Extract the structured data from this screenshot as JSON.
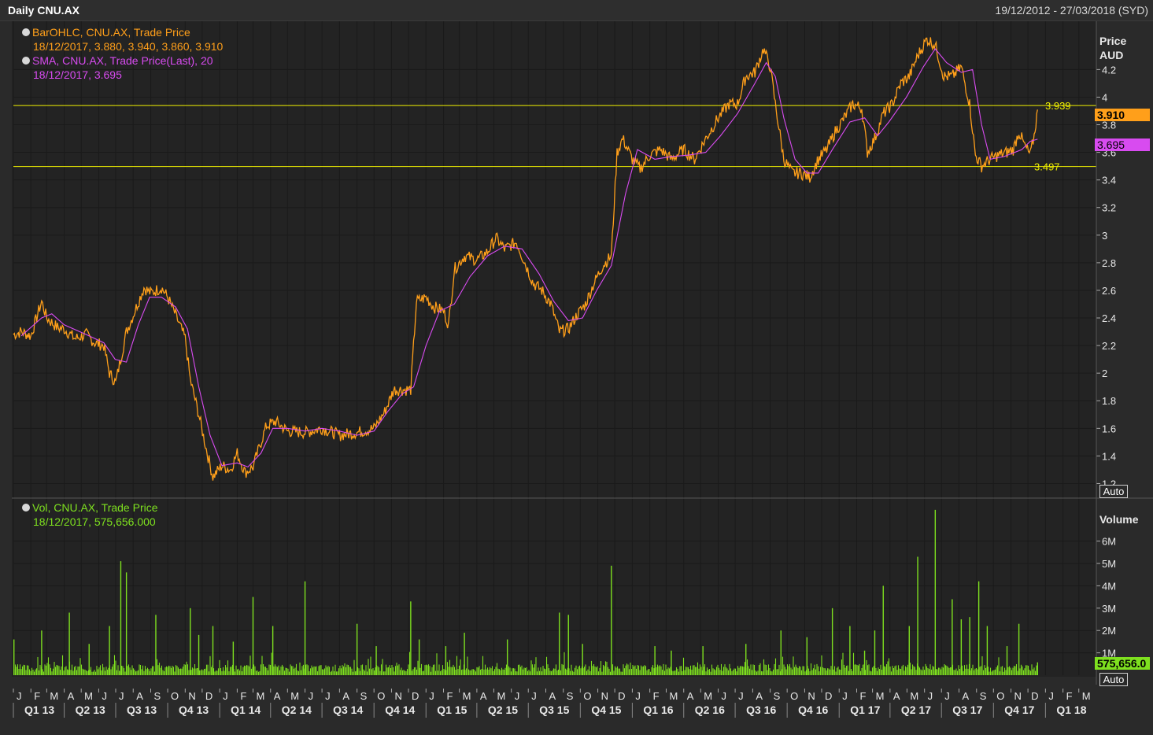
{
  "window": {
    "title": "Daily CNU.AX",
    "date_range": "19/12/2012 - 27/03/2018 (SYD)"
  },
  "legend": {
    "ohlc_name": "BarOHLC, CNU.AX, Trade Price",
    "ohlc_values": "18/12/2017, 3.880, 3.940, 3.860, 3.910",
    "sma_name": "SMA, CNU.AX, Trade Price(Last),  20",
    "sma_values": "18/12/2017, 3.695",
    "vol_name": "Vol, CNU.AX, Trade Price",
    "vol_values": "18/12/2017, 575,656.000"
  },
  "price_axis": {
    "title": "Price",
    "unit": "AUD",
    "ticks": [
      "4.2",
      "4",
      "3.8",
      "3.6",
      "3.4",
      "3.2",
      "3",
      "2.8",
      "2.6",
      "2.4",
      "2.2",
      "2",
      "1.8",
      "1.6",
      "1.4",
      "1.2"
    ],
    "last_price_tag": "3.910",
    "sma_tag": "3.695",
    "auto_label": "Auto"
  },
  "volume_axis": {
    "title": "Volume",
    "ticks": [
      "6M",
      "5M",
      "4M",
      "3M",
      "2M",
      "1M"
    ],
    "last_volume_tag": "575,656.0",
    "auto_label": "Auto"
  },
  "hlines": [
    {
      "value": 3.939,
      "label": "3.939"
    },
    {
      "value": 3.497,
      "label": "3.497"
    }
  ],
  "time_axis": {
    "months": [
      "J",
      "F",
      "M",
      "A",
      "M",
      "J",
      "J",
      "A",
      "S",
      "O",
      "N",
      "D",
      "J",
      "F",
      "M",
      "A",
      "M",
      "J",
      "J",
      "A",
      "S",
      "O",
      "N",
      "D",
      "J",
      "F",
      "M",
      "A",
      "M",
      "J",
      "J",
      "A",
      "S",
      "O",
      "N",
      "D",
      "J",
      "F",
      "M",
      "A",
      "M",
      "J",
      "J",
      "A",
      "S",
      "O",
      "N",
      "D",
      "J",
      "F",
      "M",
      "A",
      "M",
      "J",
      "J",
      "A",
      "S",
      "O",
      "N",
      "D",
      "J",
      "F",
      "M"
    ],
    "quarters": [
      "Q1 13",
      "Q2 13",
      "Q3 13",
      "Q4 13",
      "Q1 14",
      "Q2 14",
      "Q3 14",
      "Q4 14",
      "Q1 15",
      "Q2 15",
      "Q3 15",
      "Q4 15",
      "Q1 16",
      "Q2 16",
      "Q3 16",
      "Q4 16",
      "Q1 17",
      "Q2 17",
      "Q3 17",
      "Q4 17",
      "Q1 18"
    ]
  },
  "colors": {
    "price": "#ff9f1a",
    "sma": "#d84bf0",
    "volume": "#7ee01f",
    "hline": "#f0f000",
    "grid": "#000000",
    "background": "#232323"
  },
  "chart_data": [
    {
      "type": "line",
      "name": "BarOHLC, CNU.AX, Trade Price",
      "x_range": [
        "2013-01-01",
        "2018-03-31"
      ],
      "ylim": [
        1.1,
        4.55
      ],
      "points": [
        [
          "2013-01-01",
          2.28
        ],
        [
          "2013-01-15",
          2.3
        ],
        [
          "2013-02-01",
          2.27
        ],
        [
          "2013-02-20",
          2.52
        ],
        [
          "2013-03-01",
          2.4
        ],
        [
          "2013-03-20",
          2.33
        ],
        [
          "2013-04-01",
          2.32
        ],
        [
          "2013-04-20",
          2.25
        ],
        [
          "2013-05-10",
          2.28
        ],
        [
          "2013-05-25",
          2.22
        ],
        [
          "2013-06-10",
          2.2
        ],
        [
          "2013-06-20",
          2.0
        ],
        [
          "2013-07-01",
          1.93
        ],
        [
          "2013-07-20",
          2.3
        ],
        [
          "2013-08-01",
          2.42
        ],
        [
          "2013-08-20",
          2.62
        ],
        [
          "2013-09-01",
          2.58
        ],
        [
          "2013-09-20",
          2.62
        ],
        [
          "2013-10-01",
          2.55
        ],
        [
          "2013-10-15",
          2.42
        ],
        [
          "2013-11-01",
          2.25
        ],
        [
          "2013-11-10",
          1.95
        ],
        [
          "2013-11-25",
          1.7
        ],
        [
          "2013-12-10",
          1.42
        ],
        [
          "2013-12-20",
          1.25
        ],
        [
          "2014-01-05",
          1.33
        ],
        [
          "2014-01-20",
          1.3
        ],
        [
          "2014-02-01",
          1.42
        ],
        [
          "2014-02-15",
          1.28
        ],
        [
          "2014-03-01",
          1.32
        ],
        [
          "2014-03-15",
          1.5
        ],
        [
          "2014-03-25",
          1.62
        ],
        [
          "2014-04-10",
          1.65
        ],
        [
          "2014-05-01",
          1.58
        ],
        [
          "2014-06-01",
          1.57
        ],
        [
          "2014-07-01",
          1.6
        ],
        [
          "2014-08-01",
          1.55
        ],
        [
          "2014-09-01",
          1.57
        ],
        [
          "2014-10-01",
          1.6
        ],
        [
          "2014-10-20",
          1.72
        ],
        [
          "2014-11-05",
          1.88
        ],
        [
          "2014-11-20",
          1.88
        ],
        [
          "2014-12-05",
          1.88
        ],
        [
          "2014-12-15",
          2.52
        ],
        [
          "2015-01-01",
          2.55
        ],
        [
          "2015-01-15",
          2.48
        ],
        [
          "2015-02-01",
          2.45
        ],
        [
          "2015-02-10",
          2.35
        ],
        [
          "2015-02-20",
          2.75
        ],
        [
          "2015-03-10",
          2.85
        ],
        [
          "2015-04-01",
          2.82
        ],
        [
          "2015-04-20",
          2.88
        ],
        [
          "2015-05-05",
          2.98
        ],
        [
          "2015-05-20",
          2.9
        ],
        [
          "2015-06-10",
          2.95
        ],
        [
          "2015-06-25",
          2.8
        ],
        [
          "2015-07-10",
          2.65
        ],
        [
          "2015-07-25",
          2.6
        ],
        [
          "2015-08-10",
          2.5
        ],
        [
          "2015-08-25",
          2.3
        ],
        [
          "2015-09-10",
          2.32
        ],
        [
          "2015-09-25",
          2.42
        ],
        [
          "2015-10-10",
          2.5
        ],
        [
          "2015-10-25",
          2.65
        ],
        [
          "2015-11-10",
          2.78
        ],
        [
          "2015-11-25",
          2.85
        ],
        [
          "2015-12-05",
          3.6
        ],
        [
          "2015-12-15",
          3.7
        ],
        [
          "2016-01-01",
          3.55
        ],
        [
          "2016-01-15",
          3.48
        ],
        [
          "2016-02-01",
          3.58
        ],
        [
          "2016-02-20",
          3.62
        ],
        [
          "2016-03-10",
          3.55
        ],
        [
          "2016-04-01",
          3.62
        ],
        [
          "2016-04-20",
          3.55
        ],
        [
          "2016-05-10",
          3.7
        ],
        [
          "2016-06-01",
          3.85
        ],
        [
          "2016-06-20",
          3.95
        ],
        [
          "2016-07-05",
          3.95
        ],
        [
          "2016-07-20",
          4.15
        ],
        [
          "2016-08-05",
          4.18
        ],
        [
          "2016-08-20",
          4.35
        ],
        [
          "2016-09-01",
          4.22
        ],
        [
          "2016-09-10",
          3.95
        ],
        [
          "2016-09-25",
          3.55
        ],
        [
          "2016-10-10",
          3.45
        ],
        [
          "2016-10-25",
          3.45
        ],
        [
          "2016-11-10",
          3.42
        ],
        [
          "2016-11-25",
          3.55
        ],
        [
          "2016-12-10",
          3.62
        ],
        [
          "2016-12-25",
          3.75
        ],
        [
          "2017-01-10",
          3.85
        ],
        [
          "2017-01-25",
          3.95
        ],
        [
          "2017-02-10",
          3.92
        ],
        [
          "2017-02-20",
          3.6
        ],
        [
          "2017-03-05",
          3.7
        ],
        [
          "2017-03-20",
          3.88
        ],
        [
          "2017-04-05",
          3.95
        ],
        [
          "2017-04-20",
          4.1
        ],
        [
          "2017-05-05",
          4.15
        ],
        [
          "2017-05-20",
          4.3
        ],
        [
          "2017-06-05",
          4.42
        ],
        [
          "2017-06-20",
          4.38
        ],
        [
          "2017-07-05",
          4.15
        ],
        [
          "2017-07-20",
          4.15
        ],
        [
          "2017-08-05",
          4.22
        ],
        [
          "2017-08-20",
          3.95
        ],
        [
          "2017-08-30",
          3.58
        ],
        [
          "2017-09-10",
          3.5
        ],
        [
          "2017-09-25",
          3.55
        ],
        [
          "2017-10-10",
          3.58
        ],
        [
          "2017-10-25",
          3.6
        ],
        [
          "2017-11-05",
          3.62
        ],
        [
          "2017-11-15",
          3.75
        ],
        [
          "2017-11-25",
          3.65
        ],
        [
          "2017-12-05",
          3.58
        ],
        [
          "2017-12-12",
          3.72
        ],
        [
          "2017-12-18",
          3.91
        ]
      ]
    },
    {
      "type": "line",
      "name": "SMA, CNU.AX, Trade Price(Last),  20",
      "points": [
        [
          "2013-01-15",
          2.27
        ],
        [
          "2013-02-20",
          2.4
        ],
        [
          "2013-03-10",
          2.43
        ],
        [
          "2013-04-01",
          2.35
        ],
        [
          "2013-05-10",
          2.28
        ],
        [
          "2013-06-10",
          2.22
        ],
        [
          "2013-06-30",
          2.1
        ],
        [
          "2013-07-20",
          2.08
        ],
        [
          "2013-08-10",
          2.35
        ],
        [
          "2013-08-30",
          2.55
        ],
        [
          "2013-09-20",
          2.55
        ],
        [
          "2013-10-15",
          2.48
        ],
        [
          "2013-11-05",
          2.32
        ],
        [
          "2013-11-25",
          1.9
        ],
        [
          "2013-12-15",
          1.55
        ],
        [
          "2014-01-05",
          1.33
        ],
        [
          "2014-02-01",
          1.35
        ],
        [
          "2014-02-20",
          1.32
        ],
        [
          "2014-03-15",
          1.42
        ],
        [
          "2014-04-05",
          1.6
        ],
        [
          "2014-05-01",
          1.6
        ],
        [
          "2014-06-01",
          1.58
        ],
        [
          "2014-07-01",
          1.6
        ],
        [
          "2014-08-01",
          1.58
        ],
        [
          "2014-09-01",
          1.55
        ],
        [
          "2014-10-01",
          1.58
        ],
        [
          "2014-10-25",
          1.72
        ],
        [
          "2014-11-20",
          1.85
        ],
        [
          "2014-12-10",
          1.9
        ],
        [
          "2015-01-01",
          2.2
        ],
        [
          "2015-01-25",
          2.45
        ],
        [
          "2015-02-20",
          2.5
        ],
        [
          "2015-03-20",
          2.7
        ],
        [
          "2015-04-20",
          2.85
        ],
        [
          "2015-05-20",
          2.92
        ],
        [
          "2015-06-20",
          2.9
        ],
        [
          "2015-07-20",
          2.72
        ],
        [
          "2015-08-15",
          2.52
        ],
        [
          "2015-09-10",
          2.38
        ],
        [
          "2015-10-05",
          2.4
        ],
        [
          "2015-10-30",
          2.6
        ],
        [
          "2015-11-25",
          2.78
        ],
        [
          "2015-12-20",
          3.3
        ],
        [
          "2016-01-10",
          3.62
        ],
        [
          "2016-02-10",
          3.55
        ],
        [
          "2016-03-10",
          3.57
        ],
        [
          "2016-04-10",
          3.58
        ],
        [
          "2016-05-10",
          3.6
        ],
        [
          "2016-06-05",
          3.72
        ],
        [
          "2016-07-05",
          3.88
        ],
        [
          "2016-08-05",
          4.1
        ],
        [
          "2016-08-25",
          4.25
        ],
        [
          "2016-09-10",
          4.15
        ],
        [
          "2016-09-25",
          3.85
        ],
        [
          "2016-10-15",
          3.55
        ],
        [
          "2016-11-05",
          3.45
        ],
        [
          "2016-11-25",
          3.45
        ],
        [
          "2016-12-20",
          3.62
        ],
        [
          "2017-01-20",
          3.82
        ],
        [
          "2017-02-15",
          3.85
        ],
        [
          "2017-03-10",
          3.72
        ],
        [
          "2017-03-30",
          3.82
        ],
        [
          "2017-04-30",
          4.0
        ],
        [
          "2017-05-30",
          4.22
        ],
        [
          "2017-06-20",
          4.35
        ],
        [
          "2017-07-10",
          4.25
        ],
        [
          "2017-08-05",
          4.18
        ],
        [
          "2017-08-25",
          4.2
        ],
        [
          "2017-09-10",
          3.8
        ],
        [
          "2017-09-25",
          3.55
        ],
        [
          "2017-10-20",
          3.57
        ],
        [
          "2017-11-20",
          3.62
        ],
        [
          "2017-12-05",
          3.68
        ],
        [
          "2017-12-18",
          3.695
        ]
      ]
    },
    {
      "type": "bar",
      "name": "Vol, CNU.AX, Trade Price",
      "ylim": [
        0,
        7.5
      ],
      "unit": "M",
      "spikes": [
        [
          "2013-01-02",
          1.6
        ],
        [
          "2013-02-20",
          2.0
        ],
        [
          "2013-04-10",
          2.8
        ],
        [
          "2013-05-15",
          1.4
        ],
        [
          "2013-06-20",
          2.2
        ],
        [
          "2013-07-10",
          5.1
        ],
        [
          "2013-07-20",
          4.6
        ],
        [
          "2013-09-10",
          2.7
        ],
        [
          "2013-11-10",
          3.0
        ],
        [
          "2013-11-25",
          1.8
        ],
        [
          "2013-12-20",
          2.2
        ],
        [
          "2014-01-25",
          1.5
        ],
        [
          "2014-03-01",
          3.5
        ],
        [
          "2014-04-05",
          2.2
        ],
        [
          "2014-06-01",
          4.2
        ],
        [
          "2014-09-01",
          2.3
        ],
        [
          "2014-10-05",
          1.3
        ],
        [
          "2014-12-05",
          3.3
        ],
        [
          "2014-12-20",
          1.6
        ],
        [
          "2015-02-05",
          1.3
        ],
        [
          "2015-03-10",
          1.9
        ],
        [
          "2015-05-25",
          1.6
        ],
        [
          "2015-08-25",
          2.8
        ],
        [
          "2015-09-10",
          2.7
        ],
        [
          "2015-10-05",
          1.4
        ],
        [
          "2015-11-25",
          4.9
        ],
        [
          "2016-02-10",
          1.3
        ],
        [
          "2016-03-10",
          1.1
        ],
        [
          "2016-05-05",
          1.3
        ],
        [
          "2016-07-20",
          1.4
        ],
        [
          "2016-09-20",
          2.0
        ],
        [
          "2016-11-05",
          1.7
        ],
        [
          "2016-12-20",
          3.0
        ],
        [
          "2017-01-20",
          2.2
        ],
        [
          "2017-02-15",
          1.1
        ],
        [
          "2017-03-05",
          2.0
        ],
        [
          "2017-03-20",
          4.0
        ],
        [
          "2017-05-05",
          2.2
        ],
        [
          "2017-05-20",
          5.3
        ],
        [
          "2017-06-20",
          7.4
        ],
        [
          "2017-07-20",
          3.4
        ],
        [
          "2017-08-05",
          2.5
        ],
        [
          "2017-08-20",
          2.6
        ],
        [
          "2017-09-05",
          4.2
        ],
        [
          "2017-09-20",
          2.2
        ],
        [
          "2017-10-25",
          1.3
        ],
        [
          "2017-11-15",
          2.3
        ],
        [
          "2017-12-18",
          0.576
        ]
      ]
    }
  ]
}
